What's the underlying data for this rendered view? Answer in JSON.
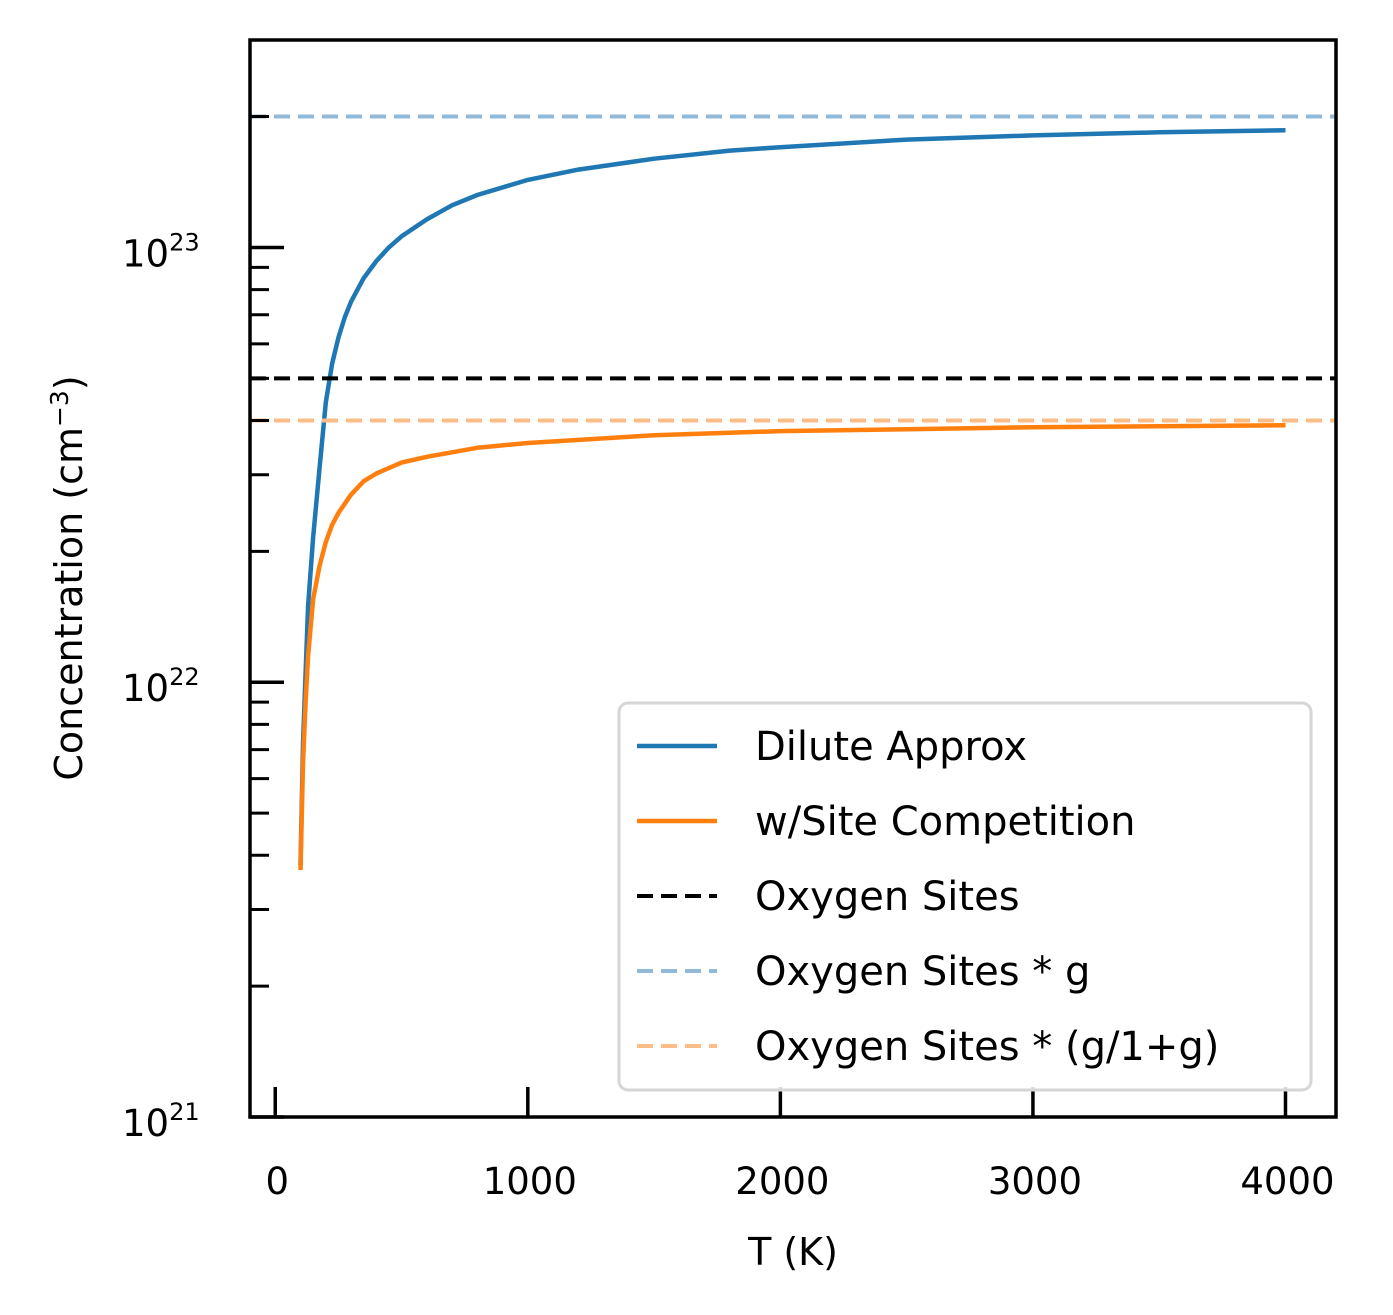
{
  "chart_data": {
    "type": "line",
    "xlabel": "T (K)",
    "ylabel": "Concentration (cm",
    "ylabel_sup": "−3",
    "ylabel_close": ")",
    "xlim": [
      -100,
      4200
    ],
    "ylim": [
      1e+21,
      3e+23
    ],
    "yscale": "log",
    "x_ticks": [
      {
        "value": 0,
        "label": "0"
      },
      {
        "value": 1000,
        "label": "1000"
      },
      {
        "value": 2000,
        "label": "2000"
      },
      {
        "value": 3000,
        "label": "3000"
      },
      {
        "value": 4000,
        "label": "4000"
      }
    ],
    "y_ticks": [
      {
        "value": 1e+21,
        "base": "10",
        "exp": "21"
      },
      {
        "value": 1e+22,
        "base": "10",
        "exp": "22"
      },
      {
        "value": 1e+23,
        "base": "10",
        "exp": "23"
      }
    ],
    "series": [
      {
        "name": "Dilute Approx",
        "color": "#1f77b4",
        "style": "solid",
        "x": [
          100,
          110,
          120,
          130,
          150,
          175,
          200,
          225,
          250,
          275,
          300,
          350,
          400,
          450,
          500,
          600,
          700,
          800,
          1000,
          1200,
          1500,
          1800,
          2000,
          2500,
          3000,
          3500,
          4000
        ],
        "y": [
          3.8e+21,
          7.2e+21,
          1.05e+22,
          1.5e+22,
          2.15e+22,
          3.1e+22,
          4.4e+22,
          5.4e+22,
          6.2e+22,
          6.9e+22,
          7.5e+22,
          8.5e+22,
          9.3e+22,
          1e+23,
          1.06e+23,
          1.16e+23,
          1.25e+23,
          1.32e+23,
          1.43e+23,
          1.51e+23,
          1.6e+23,
          1.67e+23,
          1.7e+23,
          1.77e+23,
          1.81e+23,
          1.84e+23,
          1.86e+23
        ]
      },
      {
        "name": "w/Site Competition",
        "color": "#ff7f0e",
        "style": "solid",
        "x": [
          100,
          110,
          120,
          130,
          150,
          175,
          200,
          225,
          250,
          300,
          350,
          400,
          500,
          600,
          800,
          1000,
          1500,
          2000,
          2500,
          3000,
          3500,
          4000
        ],
        "y": [
          3.7e+21,
          6.5e+21,
          9e+21,
          1.15e+22,
          1.55e+22,
          1.85e+22,
          2.1e+22,
          2.3e+22,
          2.45e+22,
          2.7e+22,
          2.9e+22,
          3.02e+22,
          3.2e+22,
          3.3e+22,
          3.46e+22,
          3.55e+22,
          3.7e+22,
          3.78e+22,
          3.82e+22,
          3.86e+22,
          3.88e+22,
          3.9e+22
        ]
      },
      {
        "name": "Oxygen Sites",
        "color": "#000000",
        "style": "dashed",
        "hline": 5e+22
      },
      {
        "name": "Oxygen Sites * g",
        "color": "#91bad8",
        "style": "dashed",
        "hline": 2e+23
      },
      {
        "name": "Oxygen Sites * (g/1+g)",
        "color": "#fbbd87",
        "style": "dashed",
        "hline": 4e+22
      }
    ],
    "legend_position": "lower-right",
    "grid": false
  }
}
